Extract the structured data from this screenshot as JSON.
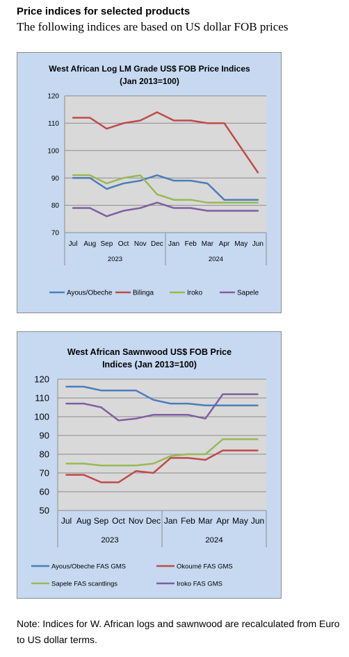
{
  "heading": "Price indices for selected products",
  "subheading": "The following indices are based on US dollar FOB prices",
  "note": "Note: Indices for W. African logs and sawnwood are recalculated from Euro to US dollar terms.",
  "chart_data": [
    {
      "type": "line",
      "title_lines": [
        "West African Log LM Grade US$ FOB Price Indices",
        "(Jan 2013=100)"
      ],
      "categories": [
        "Jul",
        "Aug",
        "Sep",
        "Oct",
        "Nov",
        "Dec",
        "Jan",
        "Feb",
        "Mar",
        "Apr",
        "May",
        "Jun"
      ],
      "year_groups": [
        {
          "label": "2023",
          "count": 6
        },
        {
          "label": "2024",
          "count": 6
        }
      ],
      "ylim": [
        70,
        120
      ],
      "yticks": [
        70,
        80,
        90,
        100,
        110,
        120
      ],
      "grid": true,
      "legend_placement": "bottom",
      "series": [
        {
          "name": "Ayous/Obeche",
          "color": "#4a7ebb",
          "values": [
            90,
            90,
            86,
            88,
            89,
            91,
            89,
            89,
            88,
            82,
            82,
            82
          ]
        },
        {
          "name": "Bilinga",
          "color": "#be4b48",
          "values": [
            112,
            112,
            108,
            110,
            111,
            114,
            111,
            111,
            110,
            110,
            101,
            92
          ]
        },
        {
          "name": "Iroko",
          "color": "#98b954",
          "values": [
            91,
            91,
            88,
            90,
            91,
            84,
            82,
            82,
            81,
            81,
            81,
            81
          ]
        },
        {
          "name": "Sapele",
          "color": "#7d60a0",
          "values": [
            79,
            79,
            76,
            78,
            79,
            81,
            79,
            79,
            78,
            78,
            78,
            78
          ]
        }
      ]
    },
    {
      "type": "line",
      "title_lines": [
        "West African Sawnwood US$ FOB Price",
        "Indices (Jan 2013=100)"
      ],
      "categories": [
        "Jul",
        "Aug",
        "Sep",
        "Oct",
        "Nov",
        "Dec",
        "Jan",
        "Feb",
        "Mar",
        "Apr",
        "May",
        "Jun"
      ],
      "year_groups": [
        {
          "label": "2023",
          "count": 6
        },
        {
          "label": "2024",
          "count": 6
        }
      ],
      "ylim": [
        50,
        120
      ],
      "yticks": [
        50,
        60,
        70,
        80,
        90,
        100,
        110,
        120
      ],
      "grid": true,
      "legend_placement": "bottom",
      "series": [
        {
          "name": "Ayous/Obeche  FAS GMS",
          "color": "#4a7ebb",
          "values": [
            116,
            116,
            114,
            114,
            114,
            109,
            107,
            107,
            106,
            106,
            106,
            106
          ]
        },
        {
          "name": "Okoumé  FAS GMS",
          "color": "#be4b48",
          "values": [
            69,
            69,
            65,
            65,
            71,
            70,
            78,
            78,
            77,
            82,
            82,
            82
          ]
        },
        {
          "name": "Sapele FAS scantlings",
          "color": "#98b954",
          "values": [
            75,
            75,
            74,
            74,
            74,
            75,
            79,
            80,
            80,
            88,
            88,
            88
          ]
        },
        {
          "name": "Iroko FAS GMS",
          "color": "#7d60a0",
          "values": [
            107,
            107,
            105,
            98,
            99,
            101,
            101,
            101,
            99,
            112,
            112,
            112
          ]
        }
      ]
    }
  ]
}
